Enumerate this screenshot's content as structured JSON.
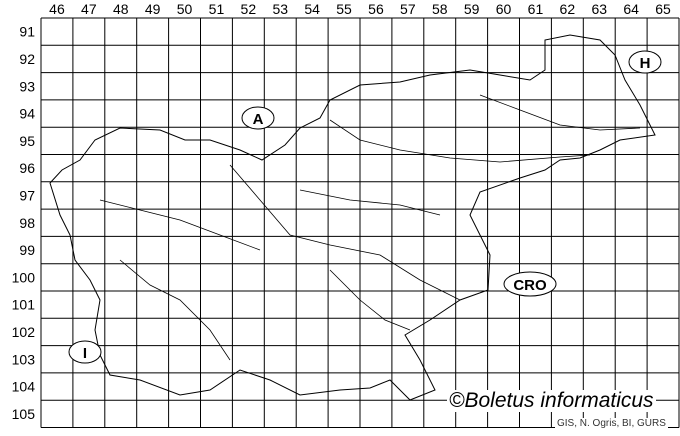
{
  "map": {
    "columns": [
      "46",
      "47",
      "48",
      "49",
      "50",
      "51",
      "52",
      "53",
      "54",
      "55",
      "56",
      "57",
      "58",
      "59",
      "60",
      "61",
      "62",
      "63",
      "64",
      "65"
    ],
    "rows": [
      "91",
      "92",
      "93",
      "94",
      "95",
      "96",
      "97",
      "98",
      "99",
      "100",
      "101",
      "102",
      "103",
      "104",
      "105"
    ],
    "neighbours": [
      {
        "code": "A"
      },
      {
        "code": "H"
      },
      {
        "code": "CRO"
      },
      {
        "code": "I"
      }
    ],
    "credit": "©Boletus informaticus",
    "source": "GIS, N. Ogris, BI, GURS"
  }
}
